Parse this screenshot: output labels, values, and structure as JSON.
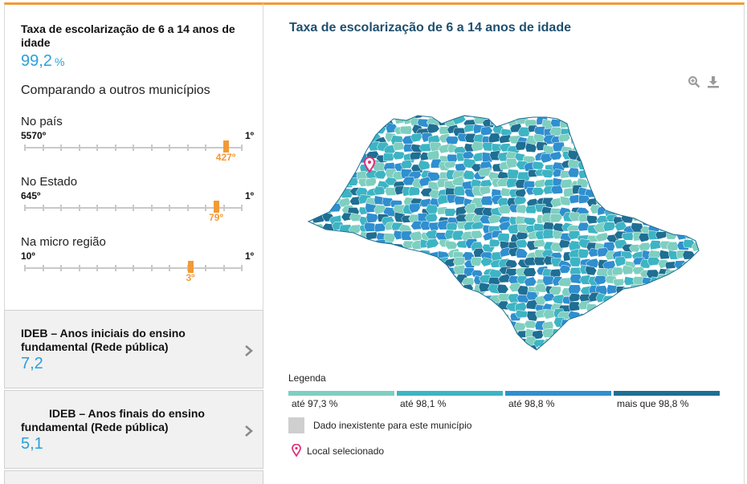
{
  "summary": {
    "indicator_title": "Taxa de escolarização de 6 a 14 anos de idade",
    "indicator_value": "99,2",
    "indicator_unit": "%",
    "compare_title": "Comparando a outros municípios"
  },
  "rankings": [
    {
      "label": "No país",
      "min": "5570º",
      "max": "1º",
      "position": "427º",
      "fraction": 0.923
    },
    {
      "label": "No Estado",
      "min": "645º",
      "max": "1º",
      "position": "79º",
      "fraction": 0.88
    },
    {
      "label": "Na micro região",
      "min": "10º",
      "max": "1º",
      "position": "3º",
      "fraction": 0.76
    }
  ],
  "cards": [
    {
      "title": "IDEB – Anos iniciais do ensino fundamental (Rede pública)",
      "value": "7,2"
    },
    {
      "title": "IDEB – Anos finais do ensino fundamental (Rede pública)",
      "value": "5,1"
    }
  ],
  "map": {
    "title": "Taxa de escolarização de 6 a 14 anos de idade",
    "zoom_icon": "zoom-in-icon",
    "download_icon": "download-icon"
  },
  "legend": {
    "title": "Legenda",
    "classes": [
      {
        "label": "até 97,3 %",
        "color": "#7ecfc0"
      },
      {
        "label": "até 98,1 %",
        "color": "#3db4c4"
      },
      {
        "label": "até 98,8 %",
        "color": "#2f8fcf"
      },
      {
        "label": "mais que 98,8 %",
        "color": "#1f6e93"
      }
    ],
    "no_data_label": "Dado inexistente para este município",
    "no_data_color": "#cfcfcf",
    "selected_label": "Local selecionado",
    "selected_color": "#e0307a"
  }
}
